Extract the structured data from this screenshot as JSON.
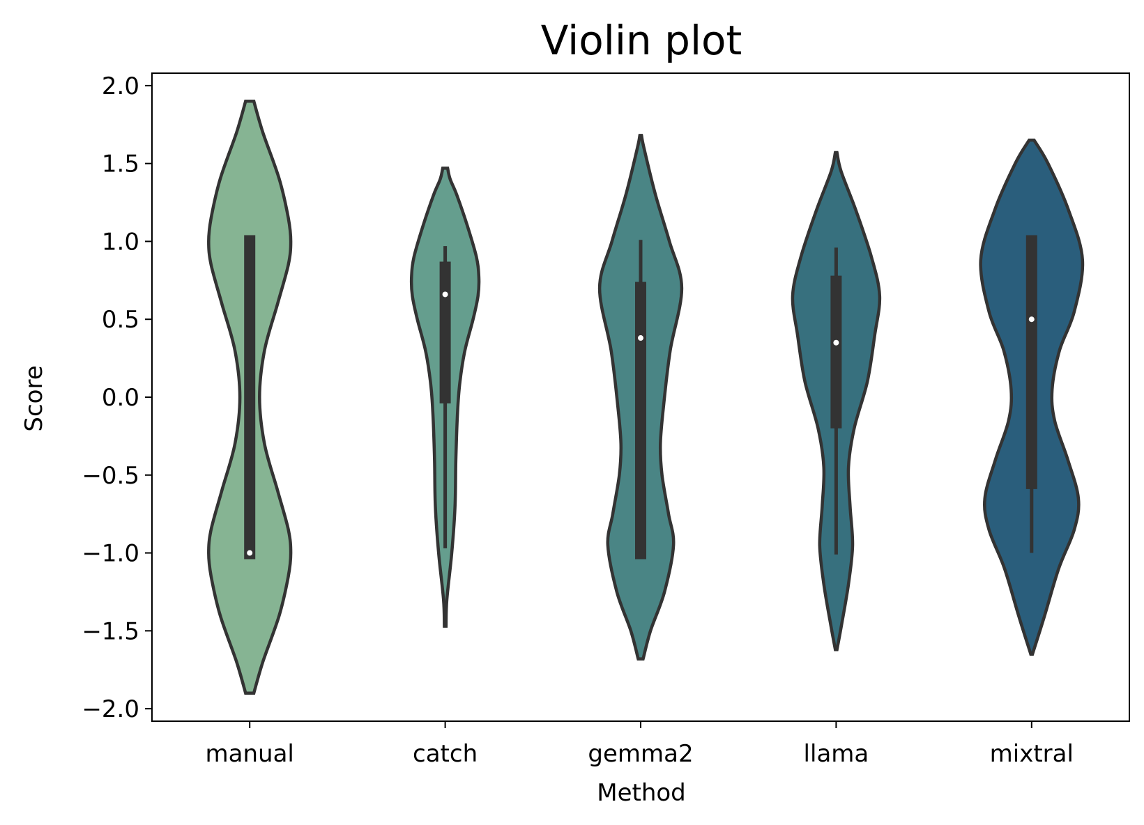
{
  "chart_data": {
    "type": "violin",
    "title": "Violin plot",
    "xlabel": "Method",
    "ylabel": "Score",
    "ylim": [
      -2.08,
      2.08
    ],
    "yticks": [
      2.0,
      1.5,
      1.0,
      0.5,
      0.0,
      -0.5,
      -1.0,
      -1.5,
      -2.0
    ],
    "ytick_labels": [
      "2.0",
      "1.5",
      "1.0",
      "0.5",
      "0.0",
      "−0.5",
      "−1.0",
      "−1.5",
      "−2.0"
    ],
    "grid": false,
    "categories": [
      "manual",
      "catch",
      "gemma2",
      "llama",
      "mixtral"
    ],
    "colors": [
      "#86b493",
      "#659e8e",
      "#4a8585",
      "#37707e",
      "#2a5e7c"
    ],
    "edge_color": "#333333",
    "violins": [
      {
        "name": "manual",
        "ymin": -1.9,
        "ymax": 1.9,
        "q1": -1.04,
        "median": -1.0,
        "q3": 1.04,
        "whisker_low": -1.04,
        "whisker_high": 1.04,
        "profile": [
          [
            -1.9,
            0.05
          ],
          [
            -1.7,
            0.16
          ],
          [
            -1.4,
            0.36
          ],
          [
            -1.15,
            0.47
          ],
          [
            -1.0,
            0.5
          ],
          [
            -0.85,
            0.47
          ],
          [
            -0.6,
            0.34
          ],
          [
            -0.3,
            0.18
          ],
          [
            0.0,
            0.12
          ],
          [
            0.3,
            0.18
          ],
          [
            0.6,
            0.34
          ],
          [
            0.85,
            0.47
          ],
          [
            1.0,
            0.5
          ],
          [
            1.15,
            0.47
          ],
          [
            1.4,
            0.36
          ],
          [
            1.7,
            0.16
          ],
          [
            1.9,
            0.05
          ]
        ]
      },
      {
        "name": "catch",
        "ymin": -1.47,
        "ymax": 1.47,
        "q1": -0.04,
        "median": 0.66,
        "q3": 0.87,
        "whisker_low": -0.97,
        "whisker_high": 0.97,
        "profile": [
          [
            -1.47,
            0.01
          ],
          [
            -1.3,
            0.02
          ],
          [
            -1.0,
            0.08
          ],
          [
            -0.7,
            0.12
          ],
          [
            -0.4,
            0.13
          ],
          [
            -0.1,
            0.15
          ],
          [
            0.1,
            0.18
          ],
          [
            0.3,
            0.24
          ],
          [
            0.5,
            0.34
          ],
          [
            0.65,
            0.4
          ],
          [
            0.77,
            0.41
          ],
          [
            0.9,
            0.38
          ],
          [
            1.1,
            0.27
          ],
          [
            1.3,
            0.14
          ],
          [
            1.4,
            0.06
          ],
          [
            1.47,
            0.03
          ]
        ]
      },
      {
        "name": "gemma2",
        "ymin": -1.68,
        "ymax": 1.68,
        "q1": -1.04,
        "median": 0.38,
        "q3": 0.74,
        "whisker_low": -1.04,
        "whisker_high": 1.01,
        "profile": [
          [
            -1.68,
            0.03
          ],
          [
            -1.5,
            0.12
          ],
          [
            -1.25,
            0.29
          ],
          [
            -0.95,
            0.4
          ],
          [
            -0.75,
            0.34
          ],
          [
            -0.5,
            0.26
          ],
          [
            -0.3,
            0.24
          ],
          [
            -0.05,
            0.28
          ],
          [
            0.3,
            0.36
          ],
          [
            0.7,
            0.5
          ],
          [
            1.0,
            0.35
          ],
          [
            1.3,
            0.18
          ],
          [
            1.6,
            0.04
          ],
          [
            1.68,
            0.01
          ]
        ]
      },
      {
        "name": "llama",
        "ymin": -1.62,
        "ymax": 1.57,
        "q1": -0.2,
        "median": 0.35,
        "q3": 0.78,
        "whisker_low": -1.01,
        "whisker_high": 0.96,
        "profile": [
          [
            -1.62,
            0.01
          ],
          [
            -1.45,
            0.07
          ],
          [
            -1.2,
            0.15
          ],
          [
            -0.95,
            0.2
          ],
          [
            -0.7,
            0.17
          ],
          [
            -0.45,
            0.15
          ],
          [
            -0.2,
            0.22
          ],
          [
            0.1,
            0.38
          ],
          [
            0.4,
            0.47
          ],
          [
            0.65,
            0.53
          ],
          [
            0.9,
            0.43
          ],
          [
            1.2,
            0.24
          ],
          [
            1.45,
            0.06
          ],
          [
            1.57,
            0.01
          ]
        ]
      },
      {
        "name": "mixtral",
        "ymin": -1.65,
        "ymax": 1.65,
        "q1": -0.59,
        "median": 0.5,
        "q3": 1.04,
        "whisker_low": -1.0,
        "whisker_high": 1.04,
        "profile": [
          [
            -1.65,
            0.01
          ],
          [
            -1.4,
            0.16
          ],
          [
            -1.1,
            0.33
          ],
          [
            -0.85,
            0.52
          ],
          [
            -0.65,
            0.57
          ],
          [
            -0.4,
            0.44
          ],
          [
            -0.15,
            0.28
          ],
          [
            0.05,
            0.25
          ],
          [
            0.3,
            0.34
          ],
          [
            0.55,
            0.52
          ],
          [
            0.88,
            0.62
          ],
          [
            1.2,
            0.45
          ],
          [
            1.5,
            0.2
          ],
          [
            1.65,
            0.03
          ]
        ]
      }
    ]
  }
}
